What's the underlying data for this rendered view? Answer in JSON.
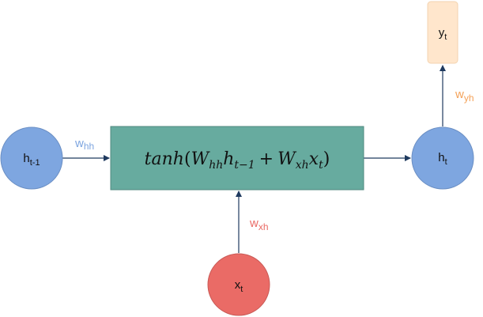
{
  "colors": {
    "hidden_node": "#7ea6e0",
    "input_node": "#ea6b66",
    "output_node": "#ffe6cc",
    "cell_box": "#67ab9f",
    "arrow": "#1f3a5f",
    "w_hh": "#7ea6e0",
    "w_xh": "#ea6b66",
    "w_yh": "#f4a259"
  },
  "icons": {
    "arrow_head": "arrowhead"
  },
  "nodes": {
    "h_prev": {
      "base": "h",
      "sub": "t-1"
    },
    "h_t": {
      "base": "h",
      "sub": "t"
    },
    "x_t": {
      "base": "x",
      "sub": "t"
    },
    "y_t": {
      "base": "y",
      "sub": "t"
    }
  },
  "weights": {
    "w_hh": {
      "base": "w",
      "sub": "hh"
    },
    "w_xh": {
      "base": "w",
      "sub": "xh"
    },
    "w_yh": {
      "base": "w",
      "sub": "yh"
    }
  },
  "cell": {
    "fn": "tanh",
    "open": "(",
    "W": "W",
    "hh": "hh",
    "h": "h",
    "t_minus_1": "t−1",
    "plus": "+",
    "xh": "xh",
    "x": "x",
    "t": "t",
    "close": ")"
  }
}
